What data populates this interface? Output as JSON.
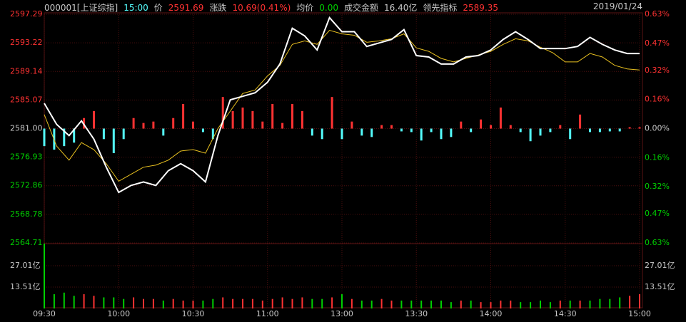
{
  "chart_data": {
    "type": "intraday",
    "header": {
      "code": "000001[上证综指]",
      "time": "15:00",
      "price_label": "价",
      "price": "2591.69",
      "change_label": "涨跌",
      "change": "10.69(0.41%)",
      "avg_label": "均价",
      "avg": "0.00",
      "amount_label": "成交金额",
      "amount": "16.40亿",
      "lead_label": "领先指标",
      "lead": "2589.35",
      "date": "2019/01/24"
    },
    "xlim": [
      0,
      240
    ],
    "xticks": [
      {
        "value": 0,
        "label": "09:30"
      },
      {
        "value": 30,
        "label": "10:00"
      },
      {
        "value": 60,
        "label": "10:30"
      },
      {
        "value": 90,
        "label": "11:00"
      },
      {
        "value": 120,
        "label": "13:00"
      },
      {
        "value": 150,
        "label": "13:30"
      },
      {
        "value": 180,
        "label": "14:00"
      },
      {
        "value": 210,
        "label": "14:30"
      },
      {
        "value": 240,
        "label": "15:00"
      }
    ],
    "ylim": [
      2564.71,
      2597.29
    ],
    "yticks": [
      2597.29,
      2593.22,
      2589.14,
      2585.07,
      {
        "value": 2581,
        "label": "2581.00"
      },
      2576.93,
      2572.86,
      2568.78,
      2564.71
    ],
    "y2lim": [
      -0.63,
      0.63
    ],
    "y2ticks": [
      {
        "value": 0.63,
        "label": "0.63%"
      },
      {
        "value": 0.47,
        "label": "0.47%"
      },
      {
        "value": 0.32,
        "label": "0.32%"
      },
      {
        "value": 0.16,
        "label": "0.16%"
      },
      {
        "value": 0,
        "label": "0.00%"
      },
      {
        "value": -0.16,
        "label": "0.16%"
      },
      {
        "value": -0.32,
        "label": "0.32%"
      },
      {
        "value": -0.47,
        "label": "0.47%"
      },
      {
        "value": -0.63,
        "label": "0.63%"
      }
    ],
    "vol_ylim": [
      0,
      40.5
    ],
    "vol_yticks": [
      {
        "value": 27.01,
        "label": "27.01亿"
      },
      {
        "value": 13.51,
        "label": "13.51亿"
      }
    ],
    "up_color": "#ff3232",
    "down_color": "#54fcfc",
    "vol_down_color": "#00d000",
    "flat_color": "#c8c8c8",
    "grid_color": "#4a0e0e",
    "price": {
      "color": "#ffffff",
      "x": [
        0,
        5,
        10,
        15,
        20,
        25,
        30,
        35,
        40,
        45,
        50,
        55,
        60,
        65,
        70,
        75,
        80,
        85,
        90,
        95,
        100,
        105,
        110,
        115,
        120,
        125,
        130,
        135,
        140,
        145,
        150,
        155,
        160,
        165,
        170,
        175,
        180,
        185,
        190,
        195,
        200,
        205,
        210,
        215,
        220,
        225,
        230,
        235,
        240
      ],
      "values": [
        2584.6,
        2581.6,
        2580.0,
        2582.1,
        2579.5,
        2575.5,
        2571.9,
        2572.9,
        2573.4,
        2572.9,
        2575.0,
        2576.0,
        2575.0,
        2573.4,
        2580.0,
        2585.1,
        2585.6,
        2586.1,
        2587.6,
        2590.2,
        2595.3,
        2594.2,
        2592.2,
        2596.8,
        2594.8,
        2594.8,
        2592.7,
        2593.2,
        2593.7,
        2595.1,
        2591.4,
        2591.2,
        2590.2,
        2590.2,
        2591.2,
        2591.4,
        2592.2,
        2593.7,
        2594.8,
        2593.7,
        2592.4,
        2592.4,
        2592.4,
        2592.7,
        2594.0,
        2593.0,
        2592.2,
        2591.7,
        2591.69
      ]
    },
    "average": {
      "color": "#e8c020",
      "x": [
        0,
        5,
        10,
        15,
        20,
        25,
        30,
        35,
        40,
        45,
        50,
        55,
        60,
        65,
        70,
        75,
        80,
        85,
        90,
        95,
        100,
        105,
        110,
        115,
        120,
        125,
        130,
        135,
        140,
        145,
        150,
        155,
        160,
        165,
        170,
        175,
        180,
        185,
        190,
        195,
        200,
        205,
        210,
        215,
        220,
        225,
        230,
        235,
        240
      ],
      "values": [
        2583.0,
        2578.5,
        2576.5,
        2579.0,
        2578.0,
        2576.0,
        2573.5,
        2574.5,
        2575.5,
        2575.8,
        2576.5,
        2577.8,
        2578.0,
        2577.5,
        2581.0,
        2583.5,
        2586.0,
        2586.5,
        2588.5,
        2590.0,
        2593.0,
        2593.5,
        2593.0,
        2595.0,
        2594.5,
        2594.3,
        2593.3,
        2593.5,
        2593.8,
        2594.5,
        2592.5,
        2592.0,
        2591.0,
        2590.5,
        2591.0,
        2591.5,
        2592.0,
        2593.0,
        2593.8,
        2593.5,
        2592.6,
        2591.8,
        2590.5,
        2590.5,
        2591.7,
        2591.2,
        2590.0,
        2589.5,
        2589.35
      ]
    },
    "indicator": {
      "x": [
        0,
        4,
        8,
        12,
        16,
        20,
        24,
        28,
        32,
        36,
        40,
        44,
        48,
        52,
        56,
        60,
        64,
        68,
        72,
        76,
        80,
        84,
        88,
        92,
        96,
        100,
        104,
        108,
        112,
        116,
        120,
        124,
        128,
        132,
        136,
        140,
        144,
        148,
        152,
        156,
        160,
        164,
        168,
        172,
        176,
        180,
        184,
        188,
        192,
        196,
        200,
        204,
        208,
        212,
        216,
        220,
        224,
        228,
        232,
        236,
        240
      ],
      "values": [
        2578.5,
        2578,
        2578.5,
        2579,
        2582.5,
        2583.5,
        2579.5,
        2577.5,
        2579.5,
        2582.5,
        2581.8,
        2582,
        2580,
        2582.5,
        2584.5,
        2582,
        2580.5,
        2579.5,
        2585.5,
        2583.5,
        2584,
        2583.5,
        2582,
        2584.5,
        2581.8,
        2584.5,
        2583.5,
        2580,
        2579.5,
        2585.5,
        2579.5,
        2582,
        2580,
        2579.8,
        2581.5,
        2581.5,
        2580.6,
        2580.5,
        2579.3,
        2580.5,
        2579.5,
        2579.8,
        2582,
        2580.5,
        2582.3,
        2581.5,
        2584,
        2581.5,
        2580.5,
        2579.2,
        2580,
        2580.5,
        2581.5,
        2579.5,
        2583,
        2580.5,
        2580.5,
        2580.6,
        2580.6,
        2581.2,
        2581.2
      ]
    },
    "volume": {
      "x": [
        0,
        4,
        8,
        12,
        16,
        20,
        24,
        28,
        32,
        36,
        40,
        44,
        48,
        52,
        56,
        60,
        64,
        68,
        72,
        76,
        80,
        84,
        88,
        92,
        96,
        100,
        104,
        108,
        112,
        116,
        120,
        124,
        128,
        132,
        136,
        140,
        144,
        148,
        152,
        156,
        160,
        164,
        168,
        172,
        176,
        180,
        184,
        188,
        192,
        196,
        200,
        204,
        208,
        212,
        216,
        220,
        224,
        228,
        232,
        236,
        240
      ],
      "values": [
        41,
        9,
        10,
        8,
        9,
        8,
        7,
        7,
        6,
        7,
        6,
        6,
        5,
        6,
        5,
        5,
        5,
        6,
        7,
        6,
        6,
        6,
        5,
        6,
        7,
        6,
        7,
        6,
        6,
        7,
        9,
        6,
        5,
        5,
        6,
        5,
        5,
        5,
        5,
        5,
        5,
        4,
        5,
        5,
        4,
        4,
        5,
        5,
        4,
        4,
        5,
        4,
        5,
        5,
        5,
        5,
        6,
        6,
        7,
        8,
        9
      ]
    }
  }
}
